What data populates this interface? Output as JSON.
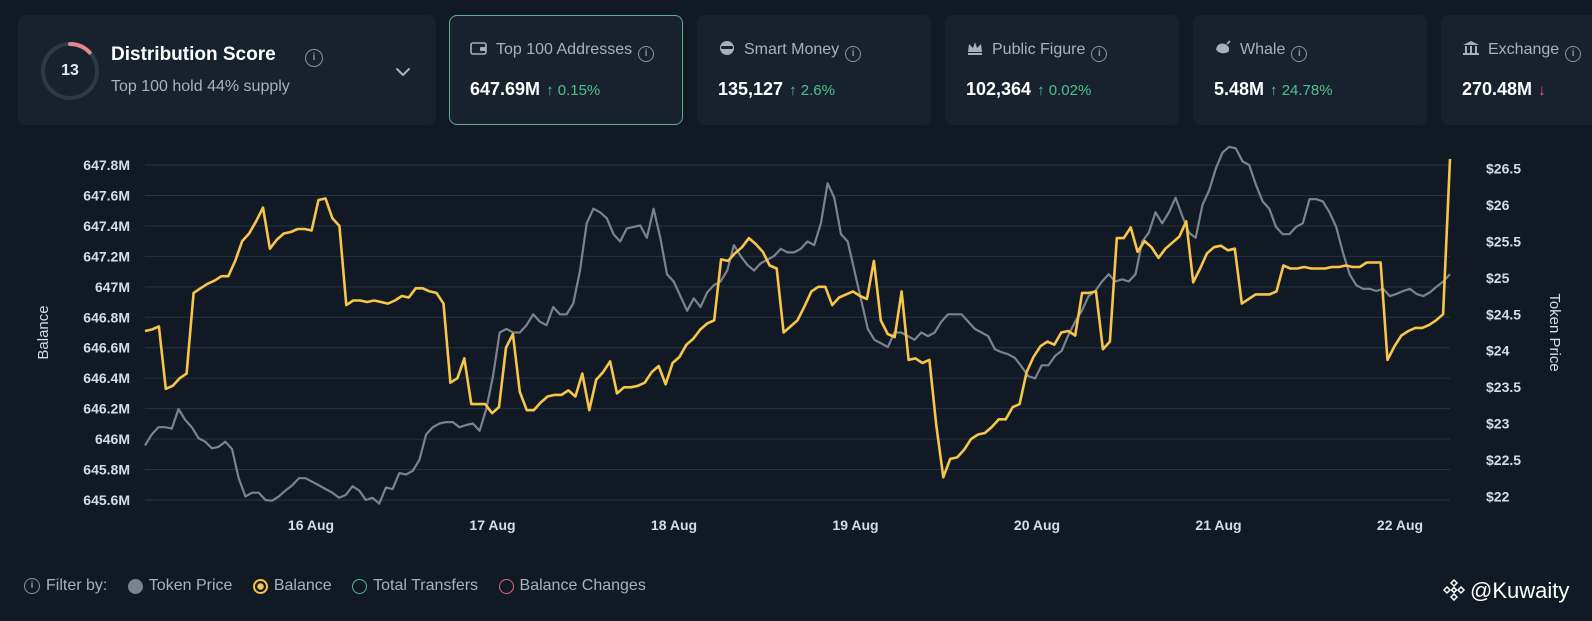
{
  "distribution": {
    "score": "13",
    "title": "Distribution Score",
    "subtitle": "Top 100 hold 44% supply",
    "gauge_fraction": 0.13
  },
  "cards": [
    {
      "title": "Top 100 Addresses",
      "icon": "wallet-icon",
      "value": "647.69M",
      "change": "0.15%",
      "direction": "up"
    },
    {
      "title": "Smart Money",
      "icon": "sunglasses-icon",
      "value": "135,127",
      "change": "2.6%",
      "direction": "up"
    },
    {
      "title": "Public Figure",
      "icon": "crown-icon",
      "value": "102,364",
      "change": "0.02%",
      "direction": "up"
    },
    {
      "title": "Whale",
      "icon": "whale-icon",
      "value": "5.48M",
      "change": "24.78%",
      "direction": "up"
    },
    {
      "title": "Exchange",
      "icon": "bank-icon",
      "value": "270.48M",
      "change": "",
      "direction": "down"
    }
  ],
  "filters": {
    "label": "Filter by:",
    "items": [
      {
        "label": "Token Price",
        "color": "#7b828c",
        "active": true
      },
      {
        "label": "Balance",
        "color": "#f7c548",
        "active": true
      },
      {
        "label": "Total Transfers",
        "color": "#4fc08d",
        "active": false
      },
      {
        "label": "Balance Changes",
        "color": "#e2667b",
        "active": false
      }
    ]
  },
  "brand": {
    "text": "@Kuwaity"
  },
  "colors": {
    "balance": "#f7c548",
    "price": "#7b828c",
    "grid": "#223446",
    "accent": "#5fae8e"
  },
  "chart_data": {
    "type": "line",
    "x_start": "2024-08-15",
    "x_end": "2024-08-22",
    "xticks": [
      "16 Aug",
      "17 Aug",
      "18 Aug",
      "19 Aug",
      "20 Aug",
      "21 Aug",
      "22 Aug"
    ],
    "left_axis": {
      "label": "Balance",
      "ticks": [
        "647.8M",
        "647.6M",
        "647.4M",
        "647.2M",
        "647M",
        "646.8M",
        "646.6M",
        "646.4M",
        "646.2M",
        "646M",
        "645.8M",
        "645.6M"
      ],
      "range": [
        645.6,
        647.8
      ]
    },
    "right_axis": {
      "label": "Token Price",
      "ticks": [
        "$26.5",
        "$26",
        "$25.5",
        "$25",
        "$24.5",
        "$24",
        "$23.5",
        "$23",
        "$22.5",
        "$22"
      ],
      "range": [
        21.95,
        26.55
      ]
    },
    "series": [
      {
        "name": "Balance",
        "axis": "left",
        "values": [
          646.71,
          646.72,
          646.74,
          646.33,
          646.35,
          646.4,
          646.43,
          646.96,
          646.99,
          647.02,
          647.04,
          647.07,
          647.07,
          647.17,
          647.3,
          647.35,
          647.43,
          647.52,
          647.25,
          647.31,
          647.35,
          647.36,
          647.38,
          647.38,
          647.37,
          647.57,
          647.58,
          647.45,
          647.4,
          646.88,
          646.91,
          646.91,
          646.9,
          646.91,
          646.9,
          646.89,
          646.91,
          646.94,
          646.93,
          646.99,
          646.99,
          646.97,
          646.96,
          646.89,
          646.37,
          646.4,
          646.53,
          646.23,
          646.23,
          646.23,
          646.17,
          646.21,
          646.6,
          646.69,
          646.31,
          646.19,
          646.19,
          646.24,
          646.28,
          646.29,
          646.29,
          646.32,
          646.28,
          646.43,
          646.19,
          646.39,
          646.44,
          646.51,
          646.3,
          646.34,
          646.34,
          646.35,
          646.37,
          646.44,
          646.48,
          646.36,
          646.5,
          646.54,
          646.62,
          646.66,
          646.72,
          646.76,
          646.78,
          647.18,
          647.17,
          647.22,
          647.26,
          647.32,
          647.28,
          647.23,
          647.14,
          647.12,
          646.7,
          646.74,
          646.78,
          646.87,
          646.97,
          647.0,
          647.0,
          646.88,
          646.93,
          646.95,
          646.97,
          646.94,
          646.92,
          647.17,
          646.78,
          646.69,
          646.67,
          646.97,
          646.52,
          646.53,
          646.5,
          646.52,
          646.09,
          645.75,
          645.87,
          645.88,
          645.93,
          646.0,
          646.03,
          646.04,
          646.08,
          646.13,
          646.13,
          646.21,
          646.23,
          646.44,
          646.54,
          646.61,
          646.64,
          646.62,
          646.7,
          646.71,
          646.68,
          646.96,
          646.96,
          646.97,
          646.59,
          646.64,
          647.32,
          647.32,
          647.39,
          647.23,
          647.3,
          647.26,
          647.19,
          647.25,
          647.29,
          647.33,
          647.43,
          647.03,
          647.12,
          647.22,
          647.26,
          647.27,
          647.24,
          647.25,
          646.89,
          646.92,
          646.95,
          646.95,
          646.95,
          646.97,
          647.14,
          647.12,
          647.12,
          647.13,
          647.12,
          647.12,
          647.12,
          647.13,
          647.13,
          647.14,
          647.13,
          647.13,
          647.16,
          647.16,
          647.16,
          646.52,
          646.61,
          646.68,
          646.71,
          646.73,
          646.73,
          646.75,
          646.78,
          646.82,
          647.84
        ]
      },
      {
        "name": "Token Price",
        "axis": "right",
        "values": [
          22.7,
          22.85,
          22.95,
          22.95,
          22.93,
          23.2,
          23.05,
          22.95,
          22.8,
          22.75,
          22.66,
          22.68,
          22.75,
          22.65,
          22.25,
          22.0,
          22.05,
          22.05,
          21.95,
          21.94,
          22.0,
          22.08,
          22.15,
          22.25,
          22.25,
          22.2,
          22.15,
          22.1,
          22.05,
          21.98,
          22.02,
          22.14,
          22.08,
          21.95,
          21.98,
          21.9,
          22.12,
          22.1,
          22.32,
          22.3,
          22.35,
          22.5,
          22.85,
          22.95,
          23.0,
          23.02,
          23.02,
          22.95,
          22.98,
          23.0,
          22.9,
          23.2,
          23.65,
          24.25,
          24.3,
          24.25,
          24.25,
          24.35,
          24.5,
          24.4,
          24.35,
          24.6,
          24.5,
          24.5,
          24.65,
          25.1,
          25.75,
          25.95,
          25.9,
          25.82,
          25.6,
          25.5,
          25.68,
          25.7,
          25.72,
          25.55,
          25.95,
          25.55,
          25.05,
          24.95,
          24.75,
          24.55,
          24.72,
          24.6,
          24.8,
          24.9,
          24.95,
          25.1,
          25.45,
          25.3,
          25.18,
          25.1,
          25.2,
          25.25,
          25.3,
          25.4,
          25.35,
          25.35,
          25.4,
          25.5,
          25.45,
          25.75,
          26.3,
          26.1,
          25.6,
          25.5,
          25.1,
          24.7,
          24.3,
          24.15,
          24.1,
          24.05,
          24.25,
          24.25,
          24.2,
          24.15,
          24.25,
          24.2,
          24.25,
          24.4,
          24.5,
          24.5,
          24.5,
          24.4,
          24.3,
          24.25,
          24.2,
          24.02,
          23.98,
          23.95,
          23.9,
          23.78,
          23.65,
          23.62,
          23.8,
          23.8,
          23.93,
          24.0,
          24.22,
          24.4,
          24.55,
          24.75,
          24.82,
          24.95,
          25.05,
          24.95,
          24.98,
          24.95,
          25.05,
          25.5,
          25.62,
          25.9,
          25.75,
          25.9,
          26.1,
          25.85,
          25.62,
          25.55,
          26.0,
          26.2,
          26.5,
          26.72,
          26.8,
          26.78,
          26.6,
          26.55,
          26.28,
          26.05,
          25.95,
          25.7,
          25.6,
          25.6,
          25.7,
          25.75,
          26.08,
          26.08,
          26.05,
          25.9,
          25.7,
          25.35,
          25.05,
          24.9,
          24.85,
          24.85,
          24.82,
          24.85,
          24.75,
          24.78,
          24.82,
          24.85,
          24.78,
          24.75,
          24.8,
          24.88,
          24.95,
          25.05
        ]
      }
    ],
    "grid": true,
    "legend": "bottom-left"
  }
}
